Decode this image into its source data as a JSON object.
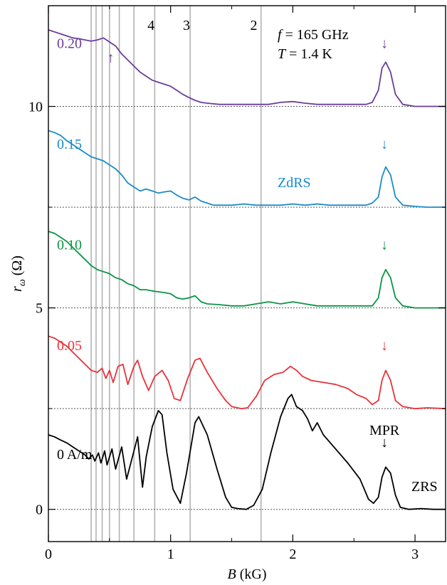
{
  "chart_data": {
    "type": "line",
    "xlabel": {
      "var": "B",
      "unit": " (kG)"
    },
    "ylabel": {
      "var": "r",
      "sub": "ω",
      "unit": " (Ω)"
    },
    "xlim": [
      0,
      3.25
    ],
    "ylim": [
      -0.8,
      12.5
    ],
    "x_ticks": [
      0,
      1,
      2,
      3
    ],
    "x_tick_labels": [
      "0",
      "1",
      "2",
      "3"
    ],
    "y_ticks": [
      0,
      5,
      10
    ],
    "y_tick_labels": [
      "0",
      "5",
      "10"
    ],
    "annotations": {
      "frequency": {
        "var": "f",
        "text": " = 165 GHz"
      },
      "temperature": {
        "var": "T",
        "text": " = 1.4 K"
      },
      "zdrs": "ZdRS",
      "zrs": "ZRS",
      "mpr": "MPR"
    },
    "filling_factors": [
      {
        "label": "4",
        "x": 0.84
      },
      {
        "label": "3",
        "x": 1.13
      },
      {
        "label": "2",
        "x": 1.68
      }
    ],
    "vertical_lines_x": [
      0.35,
      0.39,
      0.44,
      0.5,
      0.58,
      0.7,
      0.87,
      1.16,
      1.74
    ],
    "colors": {
      "s0": "#000000",
      "s05": "#e8333a",
      "s10": "#0a9447",
      "s15": "#1b8bc9",
      "s20": "#6a3d9a",
      "vline": "#b3b3b3",
      "baseline": "#555555"
    },
    "series": [
      {
        "name": "0 A/m",
        "color_key": "s0",
        "baseline": 0,
        "arrow_x": 2.75,
        "arrow_y": 1.55,
        "points": [
          [
            0,
            1.85
          ],
          [
            0.05,
            1.8
          ],
          [
            0.1,
            1.72
          ],
          [
            0.15,
            1.65
          ],
          [
            0.2,
            1.55
          ],
          [
            0.25,
            1.45
          ],
          [
            0.3,
            1.35
          ],
          [
            0.33,
            1.25
          ],
          [
            0.36,
            1.35
          ],
          [
            0.38,
            1.2
          ],
          [
            0.41,
            1.4
          ],
          [
            0.43,
            1.15
          ],
          [
            0.46,
            1.45
          ],
          [
            0.48,
            1.1
          ],
          [
            0.52,
            1.5
          ],
          [
            0.55,
            1.0
          ],
          [
            0.6,
            1.55
          ],
          [
            0.64,
            0.75
          ],
          [
            0.7,
            1.45
          ],
          [
            0.73,
            1.8
          ],
          [
            0.77,
            0.55
          ],
          [
            0.8,
            1.3
          ],
          [
            0.85,
            2.05
          ],
          [
            0.9,
            2.45
          ],
          [
            0.93,
            2.35
          ],
          [
            0.97,
            1.4
          ],
          [
            1.02,
            0.5
          ],
          [
            1.08,
            0.15
          ],
          [
            1.13,
            0.9
          ],
          [
            1.2,
            2.15
          ],
          [
            1.23,
            2.3
          ],
          [
            1.3,
            1.85
          ],
          [
            1.38,
            1.0
          ],
          [
            1.45,
            0.3
          ],
          [
            1.5,
            0.05
          ],
          [
            1.55,
            0.02
          ],
          [
            1.62,
            0.0
          ],
          [
            1.68,
            0.1
          ],
          [
            1.75,
            0.5
          ],
          [
            1.82,
            1.4
          ],
          [
            1.9,
            2.3
          ],
          [
            1.96,
            2.75
          ],
          [
            1.99,
            2.85
          ],
          [
            2.03,
            2.55
          ],
          [
            2.08,
            2.45
          ],
          [
            2.12,
            2.25
          ],
          [
            2.16,
            1.95
          ],
          [
            2.2,
            2.15
          ],
          [
            2.25,
            1.85
          ],
          [
            2.35,
            1.5
          ],
          [
            2.45,
            1.15
          ],
          [
            2.55,
            0.75
          ],
          [
            2.62,
            0.25
          ],
          [
            2.66,
            0.15
          ],
          [
            2.7,
            0.3
          ],
          [
            2.73,
            0.8
          ],
          [
            2.76,
            1.05
          ],
          [
            2.8,
            0.9
          ],
          [
            2.84,
            0.35
          ],
          [
            2.88,
            0.05
          ],
          [
            2.95,
            0.0
          ],
          [
            3.05,
            0.02
          ],
          [
            3.15,
            0.0
          ],
          [
            3.25,
            0.0
          ]
        ]
      },
      {
        "name": "0.05",
        "color_key": "s05",
        "baseline": 2.5,
        "arrow_x": 2.75,
        "arrow_y": 3.95,
        "points": [
          [
            0,
            4.3
          ],
          [
            0.05,
            4.25
          ],
          [
            0.1,
            4.15
          ],
          [
            0.15,
            4.05
          ],
          [
            0.2,
            3.9
          ],
          [
            0.25,
            3.75
          ],
          [
            0.3,
            3.6
          ],
          [
            0.35,
            3.45
          ],
          [
            0.4,
            3.4
          ],
          [
            0.44,
            3.5
          ],
          [
            0.47,
            3.25
          ],
          [
            0.5,
            3.45
          ],
          [
            0.53,
            3.15
          ],
          [
            0.57,
            3.55
          ],
          [
            0.61,
            3.6
          ],
          [
            0.65,
            3.1
          ],
          [
            0.7,
            3.55
          ],
          [
            0.73,
            3.7
          ],
          [
            0.77,
            3.3
          ],
          [
            0.82,
            2.95
          ],
          [
            0.87,
            3.3
          ],
          [
            0.93,
            3.45
          ],
          [
            0.98,
            3.2
          ],
          [
            1.03,
            2.75
          ],
          [
            1.08,
            2.7
          ],
          [
            1.14,
            3.25
          ],
          [
            1.2,
            3.7
          ],
          [
            1.24,
            3.75
          ],
          [
            1.3,
            3.4
          ],
          [
            1.38,
            3.0
          ],
          [
            1.45,
            2.7
          ],
          [
            1.5,
            2.55
          ],
          [
            1.58,
            2.5
          ],
          [
            1.63,
            2.52
          ],
          [
            1.7,
            2.8
          ],
          [
            1.77,
            3.2
          ],
          [
            1.85,
            3.35
          ],
          [
            1.92,
            3.4
          ],
          [
            1.98,
            3.55
          ],
          [
            2.03,
            3.45
          ],
          [
            2.08,
            3.3
          ],
          [
            2.15,
            3.2
          ],
          [
            2.25,
            3.15
          ],
          [
            2.35,
            3.1
          ],
          [
            2.45,
            3.0
          ],
          [
            2.52,
            2.85
          ],
          [
            2.6,
            2.75
          ],
          [
            2.65,
            2.6
          ],
          [
            2.7,
            2.7
          ],
          [
            2.73,
            3.2
          ],
          [
            2.76,
            3.45
          ],
          [
            2.8,
            3.2
          ],
          [
            2.84,
            2.7
          ],
          [
            2.9,
            2.55
          ],
          [
            3.0,
            2.5
          ],
          [
            3.1,
            2.52
          ],
          [
            3.25,
            2.5
          ]
        ]
      },
      {
        "name": "0.10",
        "color_key": "s10",
        "baseline": 5,
        "arrow_x": 2.75,
        "arrow_y": 6.45,
        "points": [
          [
            0,
            6.9
          ],
          [
            0.05,
            6.85
          ],
          [
            0.1,
            6.75
          ],
          [
            0.15,
            6.65
          ],
          [
            0.2,
            6.5
          ],
          [
            0.25,
            6.35
          ],
          [
            0.3,
            6.2
          ],
          [
            0.35,
            6.05
          ],
          [
            0.4,
            5.95
          ],
          [
            0.45,
            5.9
          ],
          [
            0.5,
            5.85
          ],
          [
            0.55,
            5.75
          ],
          [
            0.6,
            5.7
          ],
          [
            0.65,
            5.6
          ],
          [
            0.7,
            5.55
          ],
          [
            0.75,
            5.45
          ],
          [
            0.8,
            5.45
          ],
          [
            0.85,
            5.42
          ],
          [
            0.9,
            5.4
          ],
          [
            0.95,
            5.38
          ],
          [
            1.0,
            5.35
          ],
          [
            1.05,
            5.25
          ],
          [
            1.1,
            5.22
          ],
          [
            1.15,
            5.25
          ],
          [
            1.2,
            5.3
          ],
          [
            1.25,
            5.15
          ],
          [
            1.3,
            5.1
          ],
          [
            1.4,
            5.08
          ],
          [
            1.5,
            5.05
          ],
          [
            1.6,
            5.05
          ],
          [
            1.7,
            5.1
          ],
          [
            1.8,
            5.15
          ],
          [
            1.9,
            5.1
          ],
          [
            2.0,
            5.15
          ],
          [
            2.1,
            5.1
          ],
          [
            2.2,
            5.05
          ],
          [
            2.3,
            5.05
          ],
          [
            2.4,
            5.05
          ],
          [
            2.5,
            5.05
          ],
          [
            2.6,
            5.05
          ],
          [
            2.65,
            5.05
          ],
          [
            2.7,
            5.25
          ],
          [
            2.73,
            5.75
          ],
          [
            2.76,
            5.95
          ],
          [
            2.8,
            5.75
          ],
          [
            2.84,
            5.25
          ],
          [
            2.9,
            5.05
          ],
          [
            3.0,
            5.0
          ],
          [
            3.1,
            5.0
          ],
          [
            3.25,
            5.0
          ]
        ]
      },
      {
        "name": "0.15",
        "color_key": "s15",
        "baseline": 7.5,
        "arrow_x": 2.75,
        "arrow_y": 8.95,
        "points": [
          [
            0,
            9.4
          ],
          [
            0.05,
            9.35
          ],
          [
            0.1,
            9.28
          ],
          [
            0.15,
            9.15
          ],
          [
            0.2,
            9.05
          ],
          [
            0.25,
            8.95
          ],
          [
            0.3,
            8.85
          ],
          [
            0.35,
            8.75
          ],
          [
            0.4,
            8.7
          ],
          [
            0.45,
            8.65
          ],
          [
            0.5,
            8.55
          ],
          [
            0.55,
            8.45
          ],
          [
            0.6,
            8.3
          ],
          [
            0.65,
            8.1
          ],
          [
            0.7,
            8.0
          ],
          [
            0.75,
            7.9
          ],
          [
            0.8,
            7.95
          ],
          [
            0.85,
            7.9
          ],
          [
            0.9,
            7.85
          ],
          [
            0.95,
            7.88
          ],
          [
            1.0,
            7.9
          ],
          [
            1.05,
            7.8
          ],
          [
            1.1,
            7.72
          ],
          [
            1.15,
            7.68
          ],
          [
            1.2,
            7.75
          ],
          [
            1.25,
            7.65
          ],
          [
            1.3,
            7.6
          ],
          [
            1.35,
            7.55
          ],
          [
            1.4,
            7.55
          ],
          [
            1.5,
            7.55
          ],
          [
            1.6,
            7.58
          ],
          [
            1.7,
            7.55
          ],
          [
            1.8,
            7.55
          ],
          [
            1.9,
            7.55
          ],
          [
            2.0,
            7.58
          ],
          [
            2.1,
            7.55
          ],
          [
            2.2,
            7.58
          ],
          [
            2.3,
            7.55
          ],
          [
            2.4,
            7.55
          ],
          [
            2.5,
            7.55
          ],
          [
            2.6,
            7.55
          ],
          [
            2.65,
            7.6
          ],
          [
            2.7,
            7.75
          ],
          [
            2.73,
            8.25
          ],
          [
            2.76,
            8.5
          ],
          [
            2.8,
            8.3
          ],
          [
            2.84,
            7.75
          ],
          [
            2.9,
            7.55
          ],
          [
            3.0,
            7.52
          ],
          [
            3.1,
            7.5
          ],
          [
            3.25,
            7.5
          ]
        ]
      },
      {
        "name": "0.20",
        "color_key": "s20",
        "baseline": 10,
        "arrow_x": 2.75,
        "arrow_y": 11.45,
        "points": [
          [
            0,
            11.9
          ],
          [
            0.05,
            11.85
          ],
          [
            0.1,
            11.8
          ],
          [
            0.15,
            11.75
          ],
          [
            0.2,
            11.7
          ],
          [
            0.25,
            11.68
          ],
          [
            0.3,
            11.65
          ],
          [
            0.35,
            11.62
          ],
          [
            0.4,
            11.65
          ],
          [
            0.45,
            11.7
          ],
          [
            0.5,
            11.6
          ],
          [
            0.55,
            11.5
          ],
          [
            0.6,
            11.3
          ],
          [
            0.65,
            11.15
          ],
          [
            0.7,
            11.0
          ],
          [
            0.75,
            10.85
          ],
          [
            0.8,
            10.75
          ],
          [
            0.85,
            10.65
          ],
          [
            0.9,
            10.6
          ],
          [
            0.95,
            10.55
          ],
          [
            1.0,
            10.5
          ],
          [
            1.05,
            10.4
          ],
          [
            1.1,
            10.3
          ],
          [
            1.15,
            10.22
          ],
          [
            1.2,
            10.15
          ],
          [
            1.25,
            10.1
          ],
          [
            1.3,
            10.08
          ],
          [
            1.4,
            10.05
          ],
          [
            1.5,
            10.05
          ],
          [
            1.6,
            10.05
          ],
          [
            1.7,
            10.05
          ],
          [
            1.8,
            10.05
          ],
          [
            1.9,
            10.1
          ],
          [
            2.0,
            10.12
          ],
          [
            2.1,
            10.08
          ],
          [
            2.2,
            10.05
          ],
          [
            2.3,
            10.05
          ],
          [
            2.4,
            10.05
          ],
          [
            2.5,
            10.05
          ],
          [
            2.6,
            10.05
          ],
          [
            2.65,
            10.1
          ],
          [
            2.7,
            10.4
          ],
          [
            2.73,
            10.95
          ],
          [
            2.76,
            11.1
          ],
          [
            2.8,
            10.85
          ],
          [
            2.84,
            10.3
          ],
          [
            2.9,
            10.05
          ],
          [
            3.0,
            10.0
          ],
          [
            3.1,
            10.0
          ],
          [
            3.25,
            10.0
          ]
        ]
      }
    ]
  }
}
